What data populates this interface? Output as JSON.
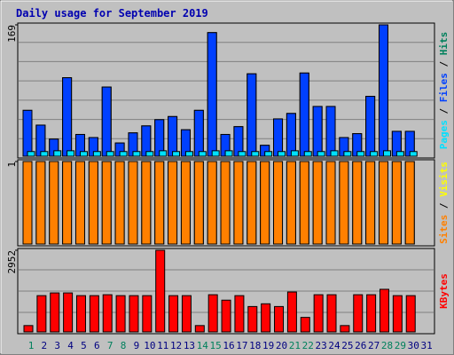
{
  "chart_data": [
    {
      "type": "bar",
      "title": "Daily usage for September 2019",
      "categories": [
        "1",
        "2",
        "3",
        "4",
        "5",
        "6",
        "7",
        "8",
        "9",
        "10",
        "11",
        "12",
        "13",
        "14",
        "15",
        "16",
        "17",
        "18",
        "19",
        "20",
        "21",
        "22",
        "23",
        "24",
        "25",
        "26",
        "27",
        "28",
        "29",
        "30",
        "31"
      ],
      "label_colors": [
        "#00805c",
        "#000080",
        "#000080",
        "#000080",
        "#000080",
        "#000080",
        "#00805c",
        "#00805c",
        "#000080",
        "#000080",
        "#000080",
        "#000080",
        "#000080",
        "#00805c",
        "#00805c",
        "#000080",
        "#000080",
        "#000080",
        "#000080",
        "#000080",
        "#00805c",
        "#00805c",
        "#000080",
        "#000080",
        "#000080",
        "#000080",
        "#000080",
        "#00805c",
        "#00805c",
        "#000080",
        "#000080"
      ],
      "legend_separator": " / ",
      "ylim": [
        0,
        169
      ],
      "yticks": [
        169
      ],
      "series": [
        {
          "name": "Hits",
          "color": "#00805c",
          "values": [
            59,
            40,
            22,
            101,
            28,
            24,
            89,
            17,
            30,
            39,
            47,
            51,
            34,
            59,
            159,
            28,
            38,
            106,
            14,
            48,
            55,
            107,
            64,
            64,
            24,
            29,
            77,
            169,
            32,
            32,
            null
          ]
        },
        {
          "name": "Files",
          "color": "#0040ff",
          "values": [
            59,
            40,
            22,
            101,
            28,
            24,
            89,
            17,
            30,
            39,
            47,
            51,
            34,
            59,
            159,
            28,
            38,
            106,
            14,
            48,
            55,
            107,
            64,
            64,
            24,
            29,
            77,
            169,
            32,
            32,
            null
          ]
        },
        {
          "name": "Pages",
          "color": "#00e0ff",
          "values": [
            6,
            6,
            7,
            7,
            6,
            6,
            6,
            6,
            6,
            6,
            7,
            6,
            6,
            6,
            7,
            7,
            6,
            6,
            6,
            6,
            7,
            6,
            6,
            7,
            6,
            6,
            6,
            7,
            6,
            6,
            null
          ]
        }
      ]
    },
    {
      "type": "bar",
      "categories": [
        "1",
        "2",
        "3",
        "4",
        "5",
        "6",
        "7",
        "8",
        "9",
        "10",
        "11",
        "12",
        "13",
        "14",
        "15",
        "16",
        "17",
        "18",
        "19",
        "20",
        "21",
        "22",
        "23",
        "24",
        "25",
        "26",
        "27",
        "28",
        "29",
        "30",
        "31"
      ],
      "legend_separator": " / ",
      "ylim": [
        0,
        1
      ],
      "yticks": [
        1
      ],
      "series": [
        {
          "name": "Visits",
          "color": "#ffff00",
          "values": [
            1,
            1,
            1,
            1,
            1,
            1,
            1,
            1,
            1,
            1,
            1,
            1,
            1,
            1,
            1,
            1,
            1,
            1,
            1,
            1,
            1,
            1,
            1,
            1,
            1,
            1,
            1,
            1,
            1,
            1,
            null
          ]
        },
        {
          "name": "Sites",
          "color": "#ff8000",
          "values": [
            1,
            1,
            1,
            1,
            1,
            1,
            1,
            1,
            1,
            1,
            1,
            1,
            1,
            1,
            1,
            1,
            1,
            1,
            1,
            1,
            1,
            1,
            1,
            1,
            1,
            1,
            1,
            1,
            1,
            1,
            null
          ]
        }
      ]
    },
    {
      "type": "bar",
      "categories": [
        "1",
        "2",
        "3",
        "4",
        "5",
        "6",
        "7",
        "8",
        "9",
        "10",
        "11",
        "12",
        "13",
        "14",
        "15",
        "16",
        "17",
        "18",
        "19",
        "20",
        "21",
        "22",
        "23",
        "24",
        "25",
        "26",
        "27",
        "28",
        "29",
        "30",
        "31"
      ],
      "ylim": [
        0,
        2952
      ],
      "yticks": [
        2952
      ],
      "series": [
        {
          "name": "KBytes",
          "color": "#ff0000",
          "values": [
            230,
            1312,
            1410,
            1410,
            1312,
            1312,
            1345,
            1312,
            1312,
            1312,
            2952,
            1312,
            1312,
            230,
            1345,
            1148,
            1312,
            918,
            1017,
            918,
            1443,
            525,
            1345,
            1345,
            230,
            1345,
            1345,
            1541,
            1312,
            1312,
            null
          ]
        }
      ]
    }
  ]
}
